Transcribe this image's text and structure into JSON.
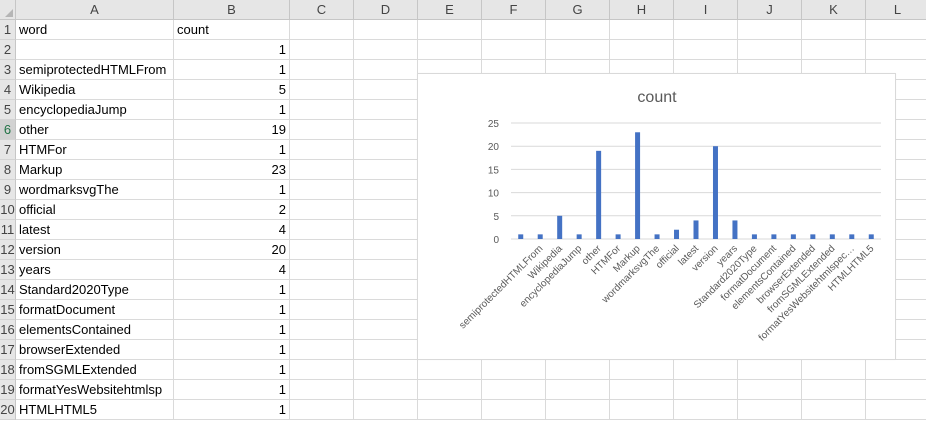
{
  "columns": [
    "A",
    "B",
    "C",
    "D",
    "E",
    "F",
    "G",
    "H",
    "I",
    "J",
    "K",
    "L"
  ],
  "rows": [
    {
      "num": "1",
      "a": "word",
      "b": "count"
    },
    {
      "num": "2",
      "a": "",
      "b": "1"
    },
    {
      "num": "3",
      "a": "semiprotectedHTMLFrom",
      "b": "1"
    },
    {
      "num": "4",
      "a": "Wikipedia",
      "b": "5"
    },
    {
      "num": "5",
      "a": "encyclopediaJump",
      "b": "1"
    },
    {
      "num": "6",
      "a": "other",
      "b": "19"
    },
    {
      "num": "7",
      "a": "HTMFor",
      "b": "1"
    },
    {
      "num": "8",
      "a": "Markup",
      "b": "23"
    },
    {
      "num": "9",
      "a": "wordmarksvgThe",
      "b": "1"
    },
    {
      "num": "10",
      "a": "official",
      "b": "2"
    },
    {
      "num": "11",
      "a": "latest",
      "b": "4"
    },
    {
      "num": "12",
      "a": "version",
      "b": "20"
    },
    {
      "num": "13",
      "a": "years",
      "b": "4"
    },
    {
      "num": "14",
      "a": "Standard2020Type",
      "b": "1"
    },
    {
      "num": "15",
      "a": "formatDocument",
      "b": "1"
    },
    {
      "num": "16",
      "a": "elementsContained",
      "b": "1"
    },
    {
      "num": "17",
      "a": "browserExtended",
      "b": "1"
    },
    {
      "num": "18",
      "a": "fromSGMLExtended",
      "b": "1"
    },
    {
      "num": "19",
      "a": "formatYesWebsitehtmlsp",
      "b": "1"
    },
    {
      "num": "20",
      "a": "HTMLHTML5",
      "b": "1"
    }
  ],
  "selected_row": "6",
  "chart_data": {
    "type": "bar",
    "title": "count",
    "categories": [
      "",
      "semiprotectedHTMLFrom",
      "Wikipedia",
      "encyclopediaJump",
      "other",
      "HTMFor",
      "Markup",
      "wordmarksvgThe",
      "official",
      "latest",
      "version",
      "years",
      "Standard2020Type",
      "formatDocument",
      "elementsContained",
      "browserExtended",
      "fromSGMLExtended",
      "formatYesWebsitehtmlspec…",
      "HTMLHTML5"
    ],
    "values": [
      1,
      1,
      5,
      1,
      19,
      1,
      23,
      1,
      2,
      4,
      20,
      4,
      1,
      1,
      1,
      1,
      1,
      1,
      1
    ],
    "yticks": [
      "0",
      "5",
      "10",
      "15",
      "20",
      "25"
    ],
    "ylim": [
      0,
      25
    ],
    "grid": true,
    "bar_color": "#4472c4"
  }
}
